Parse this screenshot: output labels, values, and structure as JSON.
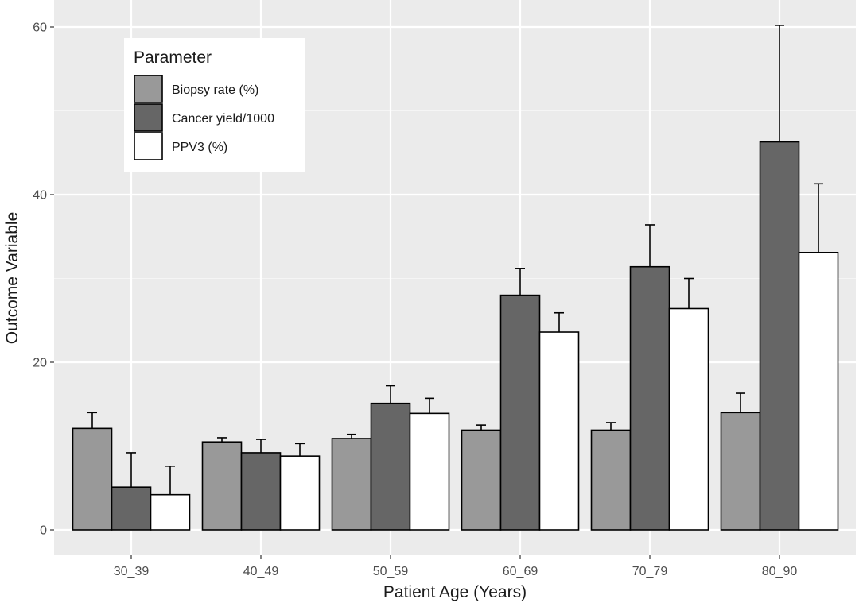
{
  "chart_data": {
    "type": "bar",
    "xlabel": "Patient Age (Years)",
    "ylabel": "Outcome Variable",
    "categories": [
      "30_39",
      "40_49",
      "50_59",
      "60_69",
      "70_79",
      "80_90"
    ],
    "ylim": [
      0,
      62
    ],
    "yticks": [
      0,
      20,
      40,
      60
    ],
    "grid": true,
    "error_bars": true,
    "legend": {
      "title": "Parameter",
      "placement": "top-left"
    },
    "series": [
      {
        "name": "Biopsy rate (%)",
        "color": "#999999",
        "values": [
          12.1,
          10.5,
          10.9,
          11.9,
          11.9,
          14.0
        ],
        "error_upper": [
          14.0,
          11.0,
          11.4,
          12.5,
          12.8,
          16.3
        ]
      },
      {
        "name": "Cancer yield/1000",
        "color": "#666666",
        "values": [
          5.1,
          9.2,
          15.1,
          28.0,
          31.4,
          46.3
        ],
        "error_upper": [
          9.2,
          10.8,
          17.2,
          31.2,
          36.4,
          60.2
        ]
      },
      {
        "name": "PPV3 (%)",
        "color": "#ffffff",
        "values": [
          4.2,
          8.8,
          13.9,
          23.6,
          26.4,
          33.1
        ],
        "error_upper": [
          7.6,
          10.3,
          15.7,
          25.9,
          30.0,
          41.3
        ]
      }
    ]
  }
}
